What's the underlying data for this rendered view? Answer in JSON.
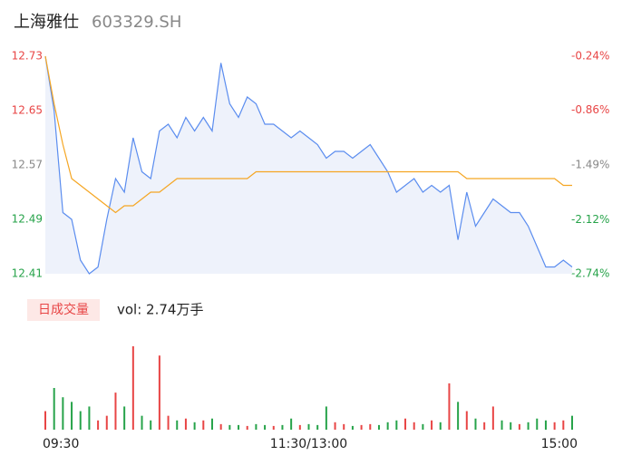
{
  "header": {
    "title": "上海雅仕",
    "code": "603329.SH"
  },
  "chart_data": [
    {
      "type": "line",
      "x": [
        0,
        4,
        8,
        12,
        16,
        20,
        24,
        28,
        32,
        36,
        40,
        44,
        48,
        52,
        56,
        60,
        64,
        68,
        72,
        76,
        80,
        84,
        88,
        92,
        96,
        100,
        104,
        108,
        112,
        116,
        120,
        124,
        128,
        132,
        136,
        140,
        144,
        148,
        152,
        156,
        160,
        164,
        168,
        172,
        176,
        180,
        184,
        188,
        192,
        196,
        200,
        204,
        208,
        212,
        216,
        220,
        224,
        228,
        232,
        236,
        240
      ],
      "xlim": [
        0,
        240
      ],
      "xticks": [
        {
          "value": 0,
          "label": "09:30"
        },
        {
          "value": 120,
          "label": "11:30/13:00"
        },
        {
          "value": 240,
          "label": "15:00"
        }
      ],
      "ylim": [
        12.41,
        12.73
      ],
      "yticks": [
        12.73,
        12.65,
        12.57,
        12.49,
        12.41
      ],
      "y2lim": [
        -2.74,
        -0.24
      ],
      "y2ticks": [
        {
          "value": -0.24,
          "label": "-0.24%"
        },
        {
          "value": -0.86,
          "label": "-0.86%"
        },
        {
          "value": -1.49,
          "label": "-1.49%"
        },
        {
          "value": -2.12,
          "label": "-2.12%"
        },
        {
          "value": -2.74,
          "label": "-2.74%"
        }
      ],
      "tick_colors": [
        "#e84545",
        "#e84545",
        "#888888",
        "#27a34a",
        "#27a34a"
      ],
      "series": [
        {
          "color": "#5b8def",
          "area": true,
          "values": [
            12.73,
            12.65,
            12.5,
            12.49,
            12.43,
            12.41,
            12.42,
            12.49,
            12.55,
            12.53,
            12.61,
            12.56,
            12.55,
            12.62,
            12.63,
            12.61,
            12.64,
            12.62,
            12.64,
            12.62,
            12.72,
            12.66,
            12.64,
            12.67,
            12.66,
            12.63,
            12.63,
            12.62,
            12.61,
            12.62,
            12.61,
            12.6,
            12.58,
            12.59,
            12.59,
            12.58,
            12.59,
            12.6,
            12.58,
            12.56,
            12.53,
            12.54,
            12.55,
            12.53,
            12.54,
            12.53,
            12.54,
            12.46,
            12.53,
            12.48,
            12.5,
            12.52,
            12.51,
            12.5,
            12.5,
            12.48,
            12.45,
            12.42,
            12.42,
            12.43,
            12.42
          ]
        },
        {
          "color": "#f5a623",
          "area": false,
          "values": [
            12.73,
            12.66,
            12.6,
            12.55,
            12.54,
            12.53,
            12.52,
            12.51,
            12.5,
            12.51,
            12.51,
            12.52,
            12.53,
            12.53,
            12.54,
            12.55,
            12.55,
            12.55,
            12.55,
            12.55,
            12.55,
            12.55,
            12.55,
            12.55,
            12.56,
            12.56,
            12.56,
            12.56,
            12.56,
            12.56,
            12.56,
            12.56,
            12.56,
            12.56,
            12.56,
            12.56,
            12.56,
            12.56,
            12.56,
            12.56,
            12.56,
            12.56,
            12.56,
            12.56,
            12.56,
            12.56,
            12.56,
            12.56,
            12.55,
            12.55,
            12.55,
            12.55,
            12.55,
            12.55,
            12.55,
            12.55,
            12.55,
            12.55,
            12.55,
            12.54,
            12.54
          ]
        }
      ]
    },
    {
      "type": "volume",
      "tag": "日成交量",
      "volume_label": "vol: 2.74万手",
      "values": [
        20,
        45,
        35,
        30,
        20,
        25,
        10,
        15,
        40,
        25,
        90,
        15,
        10,
        80,
        15,
        10,
        12,
        8,
        10,
        12,
        6,
        5,
        5,
        4,
        6,
        5,
        4,
        5,
        12,
        5,
        6,
        5,
        25,
        8,
        6,
        4,
        5,
        6,
        5,
        8,
        10,
        12,
        8,
        6,
        10,
        8,
        50,
        30,
        20,
        12,
        8,
        25,
        10,
        8,
        6,
        8,
        12,
        10,
        8,
        10,
        15
      ],
      "colors": [
        "#e84545",
        "#27a34a",
        "#27a34a",
        "#27a34a",
        "#27a34a",
        "#27a34a",
        "#e84545",
        "#e84545",
        "#e84545",
        "#27a34a",
        "#e84545",
        "#27a34a",
        "#27a34a",
        "#e84545",
        "#e84545",
        "#27a34a",
        "#e84545",
        "#27a34a",
        "#e84545",
        "#27a34a",
        "#e84545",
        "#27a34a",
        "#27a34a",
        "#e84545",
        "#27a34a",
        "#27a34a",
        "#e84545",
        "#27a34a",
        "#27a34a",
        "#e84545",
        "#27a34a",
        "#27a34a",
        "#27a34a",
        "#e84545",
        "#e84545",
        "#27a34a",
        "#e84545",
        "#e84545",
        "#27a34a",
        "#27a34a",
        "#27a34a",
        "#e84545",
        "#e84545",
        "#27a34a",
        "#e84545",
        "#27a34a",
        "#e84545",
        "#27a34a",
        "#e84545",
        "#27a34a",
        "#e84545",
        "#e84545",
        "#27a34a",
        "#27a34a",
        "#e84545",
        "#27a34a",
        "#27a34a",
        "#27a34a",
        "#e84545",
        "#e84545",
        "#27a34a"
      ]
    }
  ]
}
